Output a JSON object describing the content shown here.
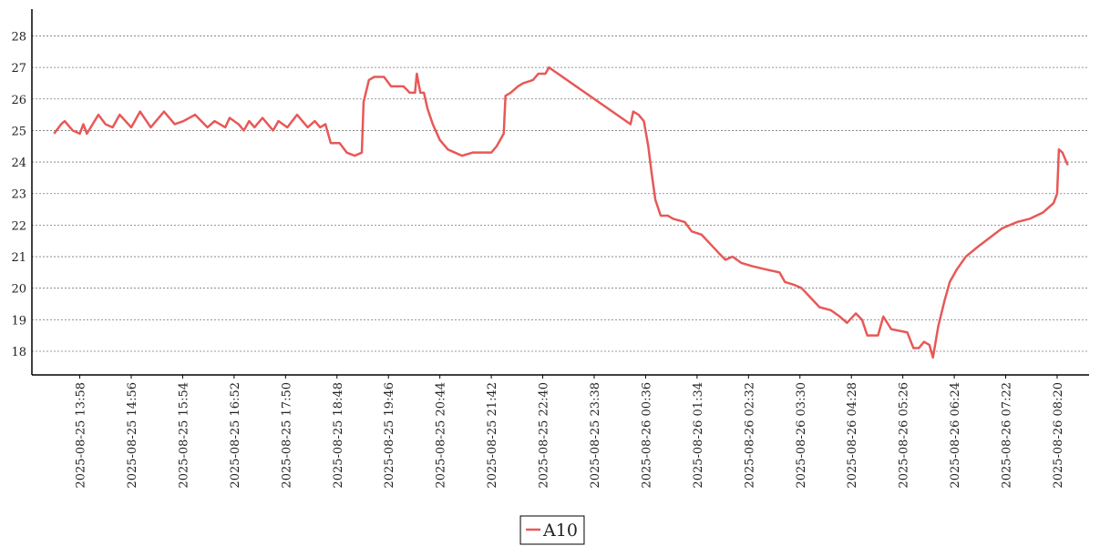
{
  "chart_data": {
    "type": "line",
    "x": [
      "2025-08-25 13:29",
      "2025-08-25 13:37",
      "2025-08-25 13:41",
      "2025-08-25 13:50",
      "2025-08-25 13:58",
      "2025-08-25 14:02",
      "2025-08-25 14:06",
      "2025-08-25 14:19",
      "2025-08-25 14:27",
      "2025-08-25 14:35",
      "2025-08-25 14:43",
      "2025-08-25 14:56",
      "2025-08-25 15:06",
      "2025-08-25 15:18",
      "2025-08-25 15:33",
      "2025-08-25 15:45",
      "2025-08-25 15:55",
      "2025-08-25 16:08",
      "2025-08-25 16:22",
      "2025-08-25 16:30",
      "2025-08-25 16:42",
      "2025-08-25 16:47",
      "2025-08-25 16:57",
      "2025-08-25 17:03",
      "2025-08-25 17:09",
      "2025-08-25 17:15",
      "2025-08-25 17:24",
      "2025-08-25 17:36",
      "2025-08-25 17:42",
      "2025-08-25 17:52",
      "2025-08-25 18:03",
      "2025-08-25 18:15",
      "2025-08-25 18:23",
      "2025-08-25 18:29",
      "2025-08-25 18:35",
      "2025-08-25 18:41",
      "2025-08-25 18:51",
      "2025-08-25 18:59",
      "2025-08-25 19:08",
      "2025-08-25 19:16",
      "2025-08-25 19:18",
      "2025-08-25 19:24",
      "2025-08-25 19:30",
      "2025-08-25 19:41",
      "2025-08-25 19:49",
      "2025-08-25 20:03",
      "2025-08-25 20:10",
      "2025-08-25 20:16",
      "2025-08-25 20:18",
      "2025-08-25 20:22",
      "2025-08-25 20:26",
      "2025-08-25 20:30",
      "2025-08-25 20:36",
      "2025-08-25 20:44",
      "2025-08-25 20:53",
      "2025-08-25 21:01",
      "2025-08-25 21:09",
      "2025-08-25 21:21",
      "2025-08-25 21:42",
      "2025-08-25 21:48",
      "2025-08-25 21:56",
      "2025-08-25 21:58",
      "2025-08-25 22:04",
      "2025-08-25 22:12",
      "2025-08-25 22:18",
      "2025-08-25 22:29",
      "2025-08-25 22:35",
      "2025-08-25 22:43",
      "2025-08-25 22:47",
      "2025-08-26 00:19",
      "2025-08-26 00:22",
      "2025-08-26 00:28",
      "2025-08-26 00:34",
      "2025-08-26 00:39",
      "2025-08-26 00:43",
      "2025-08-26 00:47",
      "2025-08-26 00:53",
      "2025-08-26 01:01",
      "2025-08-26 01:07",
      "2025-08-26 01:20",
      "2025-08-26 01:28",
      "2025-08-26 01:39",
      "2025-08-26 01:49",
      "2025-08-26 01:59",
      "2025-08-26 02:06",
      "2025-08-26 02:14",
      "2025-08-26 02:24",
      "2025-08-26 02:36",
      "2025-08-26 02:51",
      "2025-08-26 03:07",
      "2025-08-26 03:13",
      "2025-08-26 03:24",
      "2025-08-26 03:32",
      "2025-08-26 03:42",
      "2025-08-26 03:52",
      "2025-08-26 04:05",
      "2025-08-26 04:15",
      "2025-08-26 04:23",
      "2025-08-26 04:33",
      "2025-08-26 04:40",
      "2025-08-26 04:46",
      "2025-08-26 04:58",
      "2025-08-26 05:04",
      "2025-08-26 05:13",
      "2025-08-26 05:31",
      "2025-08-26 05:38",
      "2025-08-26 05:44",
      "2025-08-26 05:50",
      "2025-08-26 05:56",
      "2025-08-26 06:00",
      "2025-08-26 06:06",
      "2025-08-26 06:13",
      "2025-08-26 06:19",
      "2025-08-26 06:27",
      "2025-08-26 06:37",
      "2025-08-26 06:50",
      "2025-08-26 07:04",
      "2025-08-26 07:18",
      "2025-08-26 07:35",
      "2025-08-26 07:49",
      "2025-08-26 08:04",
      "2025-08-26 08:16",
      "2025-08-26 08:20",
      "2025-08-26 08:22",
      "2025-08-26 08:26",
      "2025-08-26 08:32"
    ],
    "series": [
      {
        "name": "A10",
        "color": "#e85858",
        "values": [
          24.9,
          25.2,
          25.3,
          25.0,
          24.9,
          25.2,
          24.9,
          25.5,
          25.2,
          25.1,
          25.5,
          25.1,
          25.6,
          25.1,
          25.6,
          25.2,
          25.3,
          25.5,
          25.1,
          25.3,
          25.1,
          25.4,
          25.2,
          25.0,
          25.3,
          25.1,
          25.4,
          25.0,
          25.3,
          25.1,
          25.5,
          25.1,
          25.3,
          25.1,
          25.2,
          24.6,
          24.6,
          24.3,
          24.2,
          24.3,
          25.9,
          26.6,
          26.7,
          26.7,
          26.4,
          26.4,
          26.2,
          26.2,
          26.8,
          26.2,
          26.2,
          25.7,
          25.2,
          24.7,
          24.4,
          24.3,
          24.2,
          24.3,
          24.3,
          24.5,
          24.9,
          26.1,
          26.2,
          26.4,
          26.5,
          26.6,
          26.8,
          26.8,
          27.0,
          25.2,
          25.6,
          25.5,
          25.3,
          24.5,
          23.6,
          22.8,
          22.3,
          22.3,
          22.2,
          22.1,
          21.8,
          21.7,
          21.4,
          21.1,
          20.9,
          21.0,
          20.8,
          20.7,
          20.6,
          20.5,
          20.2,
          20.1,
          20.0,
          19.7,
          19.4,
          19.3,
          19.1,
          18.9,
          19.2,
          19.0,
          18.5,
          18.5,
          19.1,
          18.7,
          18.6,
          18.1,
          18.1,
          18.3,
          18.2,
          17.8,
          18.8,
          19.6,
          20.2,
          20.6,
          21.0,
          21.3,
          21.6,
          21.9,
          22.1,
          22.2,
          22.4,
          22.7,
          23.0,
          24.4,
          24.3,
          23.9
        ]
      }
    ],
    "xlim": [
      "2025-08-25 13:04",
      "2025-08-26 08:56"
    ],
    "xticks": [
      "2025-08-25 13:58",
      "2025-08-25 14:56",
      "2025-08-25 15:54",
      "2025-08-25 16:52",
      "2025-08-25 17:50",
      "2025-08-25 18:48",
      "2025-08-25 19:46",
      "2025-08-25 20:44",
      "2025-08-25 21:42",
      "2025-08-25 22:40",
      "2025-08-25 23:38",
      "2025-08-26 00:36",
      "2025-08-26 01:34",
      "2025-08-26 02:32",
      "2025-08-26 03:30",
      "2025-08-26 04:28",
      "2025-08-26 05:26",
      "2025-08-26 06:24",
      "2025-08-26 07:22",
      "2025-08-26 08:20"
    ],
    "ylim": [
      17.25,
      28.85
    ],
    "yticks": [
      18,
      19,
      20,
      21,
      22,
      23,
      24,
      25,
      26,
      27,
      28
    ],
    "grid": true,
    "legend": "bottom"
  }
}
